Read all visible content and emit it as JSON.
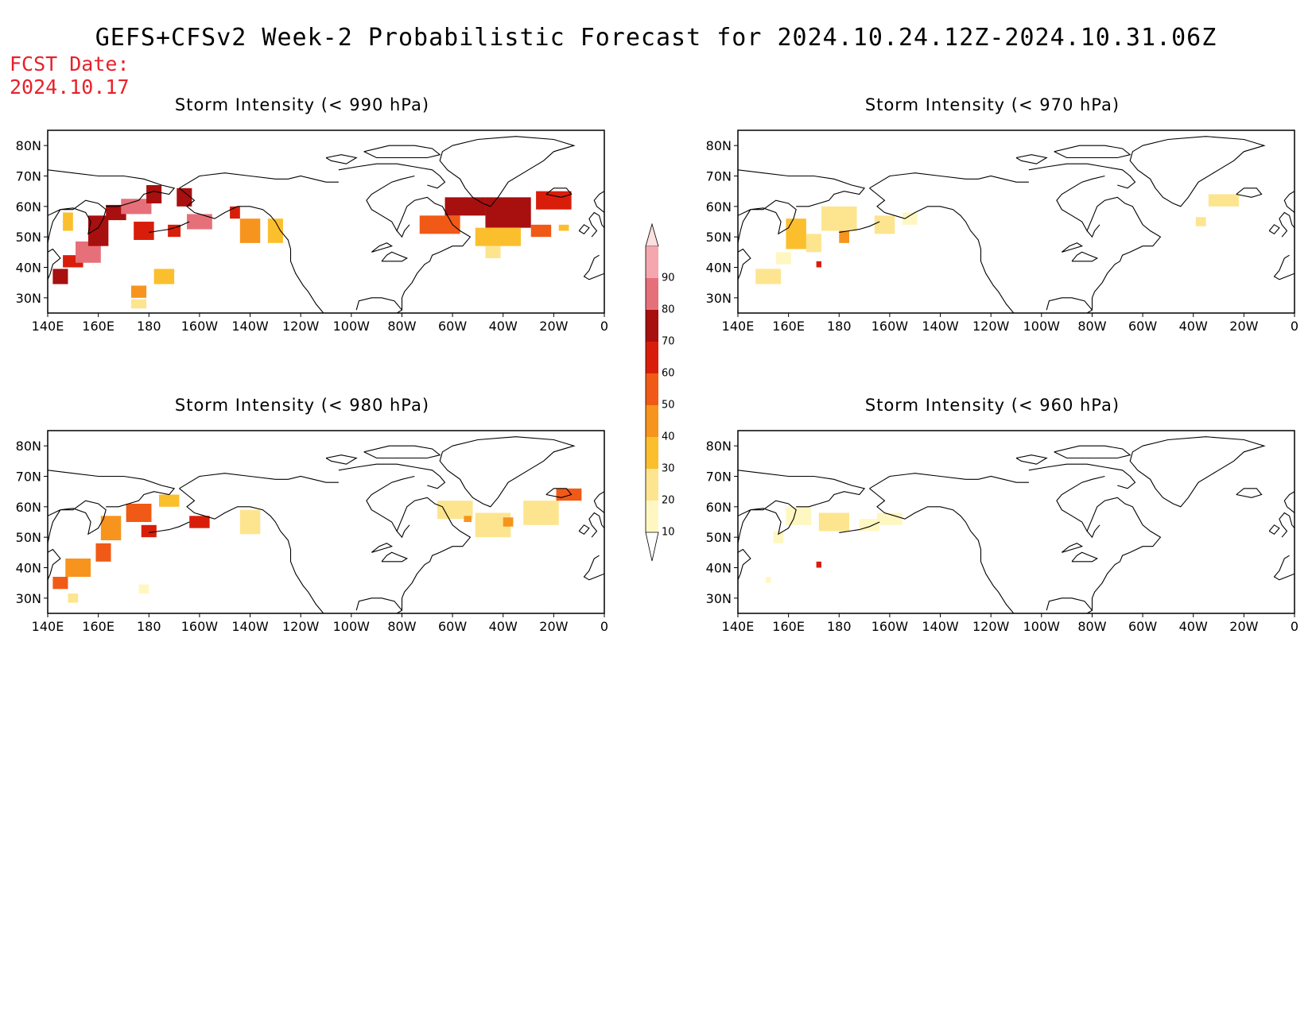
{
  "title": "GEFS+CFSv2 Week-2 Probabilistic Forecast for 2024.10.24.12Z-2024.10.31.06Z",
  "fcst_label": "FCST Date:",
  "fcst_date": "2024.10.17",
  "lat_ticks": [
    "80N",
    "70N",
    "60N",
    "50N",
    "40N",
    "30N"
  ],
  "lat_values": [
    80,
    70,
    60,
    50,
    40,
    30
  ],
  "lon_ticks": [
    "140E",
    "160E",
    "180",
    "160W",
    "140W",
    "120W",
    "100W",
    "80W",
    "60W",
    "40W",
    "20W",
    "0"
  ],
  "lon_values": [
    140,
    160,
    180,
    200,
    220,
    240,
    260,
    280,
    300,
    320,
    340,
    360
  ],
  "map_extent": {
    "lon_min": 140,
    "lon_max": 360,
    "lat_min": 25,
    "lat_max": 85
  },
  "legend": {
    "levels": [
      "10",
      "20",
      "30",
      "40",
      "50",
      "60",
      "70",
      "80",
      "90"
    ],
    "colors": [
      "#fff7c2",
      "#fde58f",
      "#fbbf2e",
      "#f7941d",
      "#f05a16",
      "#d81e0a",
      "#a80f0f",
      "#e6707a",
      "#f4a7ae"
    ],
    "top_color": "#fde0e0"
  },
  "panels": [
    {
      "id": "p990",
      "title": "Storm Intensity (< 990 hPa)",
      "blobs": [
        {
          "lon": 145,
          "lat": 37,
          "w": 6,
          "h": 5,
          "c": "#a80f0f"
        },
        {
          "lon": 150,
          "lat": 42,
          "w": 8,
          "h": 4,
          "c": "#d81e0a"
        },
        {
          "lon": 156,
          "lat": 45,
          "w": 10,
          "h": 7,
          "c": "#e6707a"
        },
        {
          "lon": 160,
          "lat": 52,
          "w": 8,
          "h": 10,
          "c": "#a80f0f"
        },
        {
          "lon": 167,
          "lat": 58,
          "w": 8,
          "h": 5,
          "c": "#a80f0f"
        },
        {
          "lon": 175,
          "lat": 60,
          "w": 12,
          "h": 5,
          "c": "#e6707a"
        },
        {
          "lon": 178,
          "lat": 52,
          "w": 8,
          "h": 6,
          "c": "#d81e0a"
        },
        {
          "lon": 182,
          "lat": 64,
          "w": 6,
          "h": 6,
          "c": "#a80f0f"
        },
        {
          "lon": 194,
          "lat": 63,
          "w": 6,
          "h": 6,
          "c": "#a80f0f"
        },
        {
          "lon": 190,
          "lat": 52,
          "w": 5,
          "h": 4,
          "c": "#d81e0a"
        },
        {
          "lon": 200,
          "lat": 55,
          "w": 10,
          "h": 5,
          "c": "#e6707a"
        },
        {
          "lon": 214,
          "lat": 58,
          "w": 4,
          "h": 4,
          "c": "#d81e0a"
        },
        {
          "lon": 220,
          "lat": 52,
          "w": 8,
          "h": 8,
          "c": "#f7941d"
        },
        {
          "lon": 230,
          "lat": 52,
          "w": 6,
          "h": 8,
          "c": "#fbbf2e"
        },
        {
          "lon": 148,
          "lat": 55,
          "w": 4,
          "h": 6,
          "c": "#fbbf2e"
        },
        {
          "lon": 176,
          "lat": 32,
          "w": 6,
          "h": 4,
          "c": "#f7941d"
        },
        {
          "lon": 186,
          "lat": 37,
          "w": 8,
          "h": 5,
          "c": "#fbbf2e"
        },
        {
          "lon": 176,
          "lat": 28,
          "w": 6,
          "h": 3,
          "c": "#fde58f"
        },
        {
          "lon": 295,
          "lat": 54,
          "w": 16,
          "h": 6,
          "c": "#f05a16"
        },
        {
          "lon": 305,
          "lat": 60,
          "w": 16,
          "h": 6,
          "c": "#a80f0f"
        },
        {
          "lon": 322,
          "lat": 58,
          "w": 18,
          "h": 10,
          "c": "#a80f0f"
        },
        {
          "lon": 340,
          "lat": 62,
          "w": 14,
          "h": 6,
          "c": "#d81e0a"
        },
        {
          "lon": 318,
          "lat": 50,
          "w": 18,
          "h": 6,
          "c": "#fbbf2e"
        },
        {
          "lon": 316,
          "lat": 45,
          "w": 6,
          "h": 4,
          "c": "#fde58f"
        },
        {
          "lon": 335,
          "lat": 52,
          "w": 8,
          "h": 4,
          "c": "#f05a16"
        },
        {
          "lon": 344,
          "lat": 53,
          "w": 4,
          "h": 2,
          "c": "#fbbf2e"
        }
      ]
    },
    {
      "id": "p970",
      "title": "Storm Intensity (< 970 hPa)",
      "blobs": [
        {
          "lon": 152,
          "lat": 37,
          "w": 10,
          "h": 5,
          "c": "#fde58f"
        },
        {
          "lon": 158,
          "lat": 43,
          "w": 6,
          "h": 4,
          "c": "#fff7c2"
        },
        {
          "lon": 163,
          "lat": 51,
          "w": 8,
          "h": 10,
          "c": "#fbbf2e"
        },
        {
          "lon": 170,
          "lat": 48,
          "w": 6,
          "h": 6,
          "c": "#fde58f"
        },
        {
          "lon": 180,
          "lat": 56,
          "w": 14,
          "h": 8,
          "c": "#fde58f"
        },
        {
          "lon": 182,
          "lat": 50,
          "w": 4,
          "h": 4,
          "c": "#f7941d"
        },
        {
          "lon": 198,
          "lat": 54,
          "w": 8,
          "h": 6,
          "c": "#fde58f"
        },
        {
          "lon": 208,
          "lat": 56,
          "w": 6,
          "h": 4,
          "c": "#fff7c2"
        },
        {
          "lon": 172,
          "lat": 41,
          "w": 2,
          "h": 2,
          "c": "#d81e0a"
        },
        {
          "lon": 332,
          "lat": 62,
          "w": 12,
          "h": 4,
          "c": "#fde58f"
        },
        {
          "lon": 323,
          "lat": 55,
          "w": 4,
          "h": 3,
          "c": "#fde58f"
        }
      ]
    },
    {
      "id": "p980",
      "title": "Storm Intensity (< 980 hPa)",
      "blobs": [
        {
          "lon": 145,
          "lat": 35,
          "w": 6,
          "h": 4,
          "c": "#f05a16"
        },
        {
          "lon": 152,
          "lat": 40,
          "w": 10,
          "h": 6,
          "c": "#f7941d"
        },
        {
          "lon": 162,
          "lat": 45,
          "w": 6,
          "h": 6,
          "c": "#f05a16"
        },
        {
          "lon": 165,
          "lat": 53,
          "w": 8,
          "h": 8,
          "c": "#f7941d"
        },
        {
          "lon": 176,
          "lat": 58,
          "w": 10,
          "h": 6,
          "c": "#f05a16"
        },
        {
          "lon": 180,
          "lat": 52,
          "w": 6,
          "h": 4,
          "c": "#d81e0a"
        },
        {
          "lon": 188,
          "lat": 62,
          "w": 8,
          "h": 4,
          "c": "#fbbf2e"
        },
        {
          "lon": 200,
          "lat": 55,
          "w": 8,
          "h": 4,
          "c": "#d81e0a"
        },
        {
          "lon": 220,
          "lat": 55,
          "w": 8,
          "h": 8,
          "c": "#fde58f"
        },
        {
          "lon": 150,
          "lat": 30,
          "w": 4,
          "h": 3,
          "c": "#fde58f"
        },
        {
          "lon": 178,
          "lat": 33,
          "w": 4,
          "h": 3,
          "c": "#fff7c2"
        },
        {
          "lon": 301,
          "lat": 59,
          "w": 14,
          "h": 6,
          "c": "#fde58f"
        },
        {
          "lon": 316,
          "lat": 54,
          "w": 14,
          "h": 8,
          "c": "#fde58f"
        },
        {
          "lon": 335,
          "lat": 58,
          "w": 14,
          "h": 8,
          "c": "#fde58f"
        },
        {
          "lon": 346,
          "lat": 64,
          "w": 10,
          "h": 4,
          "c": "#f05a16"
        },
        {
          "lon": 322,
          "lat": 55,
          "w": 4,
          "h": 3,
          "c": "#f7941d"
        },
        {
          "lon": 306,
          "lat": 56,
          "w": 3,
          "h": 2,
          "c": "#f7941d"
        }
      ]
    },
    {
      "id": "p960",
      "title": "Storm Intensity (< 960 hPa)",
      "blobs": [
        {
          "lon": 164,
          "lat": 57,
          "w": 10,
          "h": 6,
          "c": "#fff7c2"
        },
        {
          "lon": 178,
          "lat": 55,
          "w": 12,
          "h": 6,
          "c": "#fde58f"
        },
        {
          "lon": 192,
          "lat": 54,
          "w": 8,
          "h": 4,
          "c": "#fff7c2"
        },
        {
          "lon": 156,
          "lat": 50,
          "w": 4,
          "h": 4,
          "c": "#fff7c2"
        },
        {
          "lon": 200,
          "lat": 56,
          "w": 10,
          "h": 4,
          "c": "#fff7c2"
        },
        {
          "lon": 172,
          "lat": 41,
          "w": 2,
          "h": 2,
          "c": "#d81e0a"
        },
        {
          "lon": 152,
          "lat": 36,
          "w": 2,
          "h": 2,
          "c": "#fff7c2"
        }
      ]
    }
  ]
}
